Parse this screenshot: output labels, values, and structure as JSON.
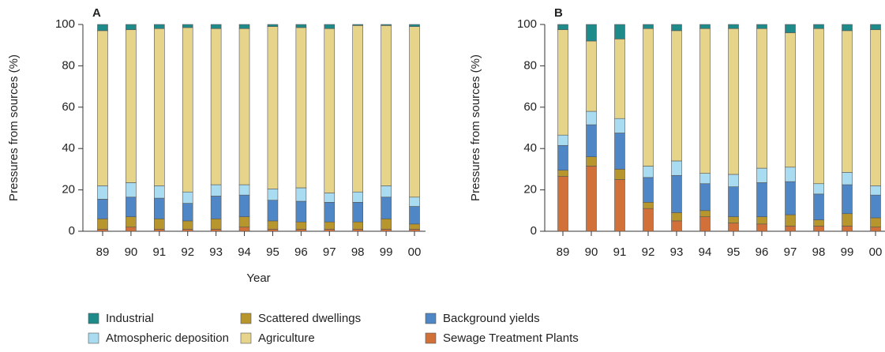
{
  "chart_data": [
    {
      "type": "bar",
      "stacked": true,
      "panel_label": "A",
      "x_label": "Year",
      "y_label": "Pressures from sources (%)",
      "categories": [
        "89",
        "90",
        "91",
        "92",
        "93",
        "94",
        "95",
        "96",
        "97",
        "98",
        "99",
        "00"
      ],
      "ylim": [
        0,
        100
      ],
      "yticks": [
        0,
        20,
        40,
        60,
        80,
        100
      ],
      "series": [
        {
          "name": "Sewage Treatment Plants",
          "color": "#d2703a",
          "values": [
            1,
            2,
            1,
            1,
            1,
            2,
            1,
            1,
            1,
            1,
            1,
            1
          ]
        },
        {
          "name": "Scattered dwellings",
          "color": "#b8962e",
          "values": [
            5,
            5,
            5,
            4,
            5,
            5,
            4,
            3.5,
            3.5,
            3.5,
            5,
            2.5
          ]
        },
        {
          "name": "Background yields",
          "color": "#4f86c6",
          "values": [
            9.5,
            9.5,
            10,
            8.5,
            11,
            10.5,
            10,
            10,
            9.5,
            9.5,
            10.5,
            8.5
          ]
        },
        {
          "name": "Atmospheric deposition",
          "color": "#a9dcf0",
          "values": [
            6.5,
            7,
            6,
            5.5,
            5.5,
            5,
            5.5,
            6.5,
            4.5,
            5,
            5.5,
            4.5
          ]
        },
        {
          "name": "Agriculture",
          "color": "#e6d48a",
          "values": [
            75,
            74,
            76,
            79.5,
            75.5,
            75.5,
            78.5,
            77.5,
            79.5,
            80.5,
            77.5,
            82.5
          ]
        },
        {
          "name": "Industrial",
          "color": "#1f8a8a",
          "values": [
            3,
            2.5,
            2,
            1.5,
            2,
            2,
            1,
            1.5,
            2,
            0.5,
            0.5,
            1
          ]
        }
      ]
    },
    {
      "type": "bar",
      "stacked": true,
      "panel_label": "B",
      "y_label": "Pressures from sources (%)",
      "categories": [
        "89",
        "90",
        "91",
        "92",
        "93",
        "94",
        "95",
        "96",
        "97",
        "98",
        "99",
        "00"
      ],
      "ylim": [
        0,
        100
      ],
      "yticks": [
        0,
        20,
        40,
        60,
        80,
        100
      ],
      "series": [
        {
          "color": "#d2703a",
          "values": [
            26.5,
            31.5,
            25,
            11,
            5,
            7,
            4,
            3.5,
            2.5,
            2.5,
            2.5,
            2
          ]
        },
        {
          "color": "#b8962e",
          "values": [
            3,
            4.5,
            5,
            3,
            4,
            3,
            3,
            3.5,
            5.5,
            3,
            6,
            4.5
          ]
        },
        {
          "color": "#4f86c6",
          "values": [
            12,
            15.5,
            17.5,
            12,
            18,
            13,
            14.5,
            16.5,
            16,
            12.5,
            14,
            11
          ]
        },
        {
          "color": "#a9dcf0",
          "values": [
            5,
            6.5,
            7,
            5.5,
            7,
            5,
            6,
            7,
            7,
            5,
            6,
            4.5
          ]
        },
        {
          "color": "#e6d48a",
          "values": [
            51,
            34,
            38.5,
            66.5,
            63,
            70,
            70.5,
            67.5,
            65,
            75,
            68.5,
            75.5
          ]
        },
        {
          "color": "#1f8a8a",
          "values": [
            2.5,
            8,
            7,
            2,
            3,
            2,
            2,
            2,
            4,
            2,
            3,
            2.5
          ]
        }
      ]
    }
  ]
}
